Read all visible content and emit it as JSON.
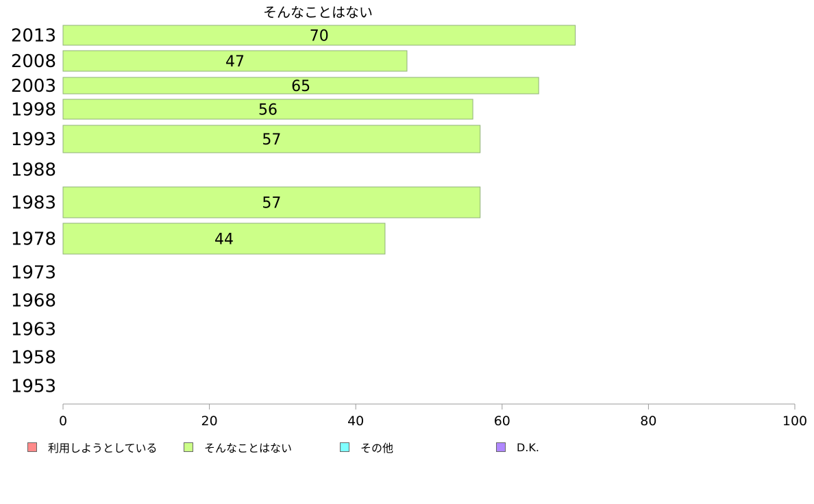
{
  "chart_data": {
    "type": "bar",
    "orientation": "horizontal",
    "title": "そんなことはない",
    "categories": [
      "2013",
      "2008",
      "2003",
      "1998",
      "1993",
      "1988",
      "1983",
      "1978",
      "1973",
      "1968",
      "1963",
      "1958",
      "1953"
    ],
    "series": [
      {
        "name": "そんなことはない",
        "color": "#ccff88",
        "values": [
          70,
          47,
          65,
          56,
          57,
          null,
          57,
          44,
          null,
          null,
          null,
          null,
          null
        ],
        "labels": [
          "70",
          "47",
          "65",
          "56",
          "57",
          "",
          "57",
          "44",
          "",
          "",
          "",
          "",
          ""
        ]
      }
    ],
    "xlim": [
      0,
      100
    ],
    "xticks": [
      "0",
      "20",
      "40",
      "60",
      "80",
      "100"
    ],
    "grid": false,
    "legend_placement": "bottom",
    "legend": [
      {
        "label": "利用しようとしている",
        "color": "#ff8a8a"
      },
      {
        "label": "そんなことはない",
        "color": "#ccff88"
      },
      {
        "label": "その他",
        "color": "#7fffff"
      },
      {
        "label": "D.K.",
        "color": "#b088ff"
      }
    ]
  }
}
